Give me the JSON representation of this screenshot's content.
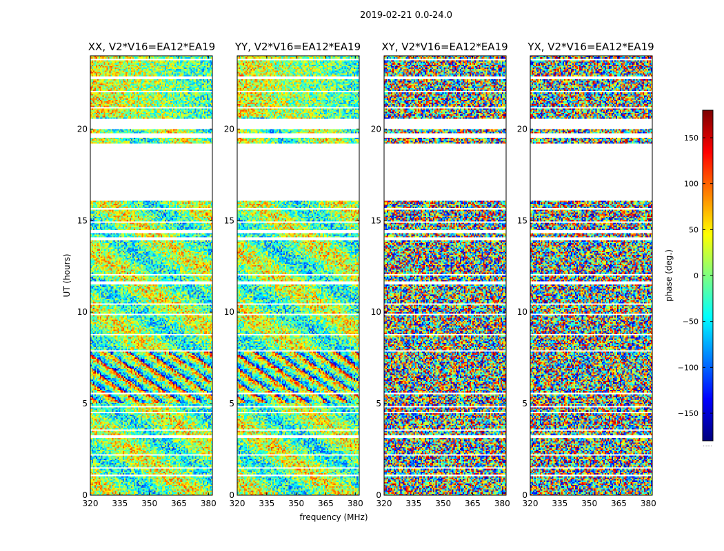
{
  "chart_data": {
    "type": "heatmap",
    "title": "2019-02-21 0.0-24.0",
    "xlabel": "frequency (MHz)",
    "ylabel": "UT (hours)",
    "xlim": [
      320,
      382
    ],
    "ylim": [
      0,
      24
    ],
    "xticks": [
      "320",
      "335",
      "350",
      "365",
      "380"
    ],
    "xtick_values": [
      320,
      335,
      350,
      365,
      380
    ],
    "yticks": [
      "0",
      "5",
      "10",
      "15",
      "20"
    ],
    "ytick_values": [
      0,
      5,
      10,
      15,
      20
    ],
    "panels": [
      {
        "title": "XX, V2*V16=EA12*EA19",
        "smooth": 0.6
      },
      {
        "title": "YY, V2*V16=EA12*EA19",
        "smooth": 0.6
      },
      {
        "title": "XY, V2*V16=EA12*EA19",
        "smooth": 0.1
      },
      {
        "title": "YX, V2*V16=EA12*EA19",
        "smooth": 0.1
      }
    ],
    "colorbar": {
      "label": "phase (deg.)",
      "range": [
        -180,
        180
      ],
      "ticks": [
        "−150",
        "−100",
        "−50",
        "0",
        "50",
        "100",
        "150"
      ],
      "tick_values": [
        -150,
        -100,
        -50,
        0,
        50,
        100,
        150
      ],
      "colormap": "jet"
    },
    "flagged_ut_ranges": [
      [
        1.05,
        1.15
      ],
      [
        1.4,
        1.5
      ],
      [
        2.15,
        2.25
      ],
      [
        3.1,
        3.3
      ],
      [
        3.5,
        3.6
      ],
      [
        4.45,
        4.55
      ],
      [
        4.8,
        4.9
      ],
      [
        5.5,
        5.6
      ],
      [
        7.8,
        7.9
      ],
      [
        8.7,
        8.8
      ],
      [
        9.85,
        9.95
      ],
      [
        10.4,
        10.5
      ],
      [
        11.55,
        11.65
      ],
      [
        12.0,
        12.1
      ],
      [
        13.95,
        14.05
      ],
      [
        14.35,
        14.45
      ],
      [
        14.9,
        15.0
      ],
      [
        15.6,
        15.7
      ],
      [
        16.05,
        19.2
      ],
      [
        19.5,
        19.8
      ],
      [
        20.0,
        20.6
      ],
      [
        21.1,
        21.2
      ],
      [
        22.0,
        22.1
      ],
      [
        22.75,
        22.85
      ],
      [
        23.75,
        23.85
      ]
    ]
  }
}
